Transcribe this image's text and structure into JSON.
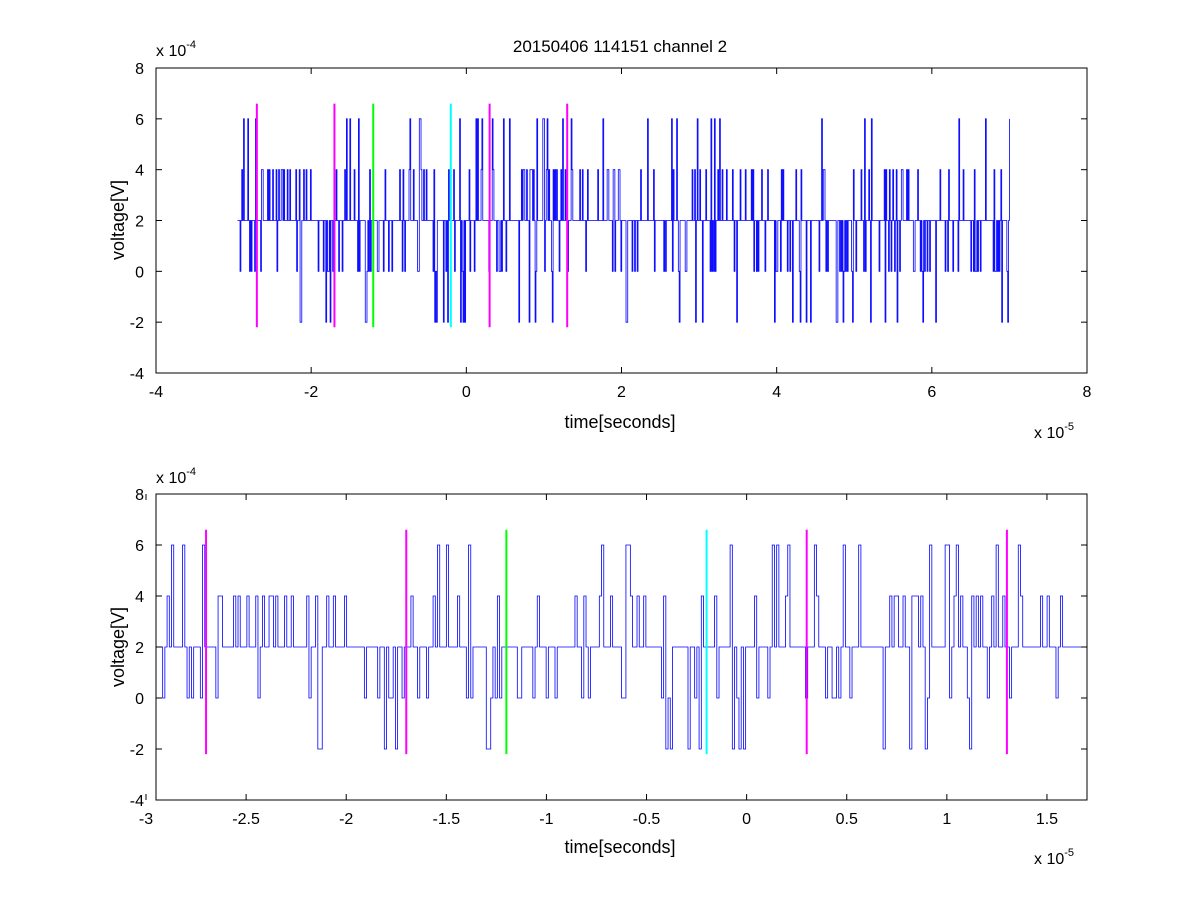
{
  "figure_title": "20150406 114151 channel 2",
  "chart_data": [
    {
      "type": "line",
      "xlabel": "time[seconds]",
      "ylabel": "voltage[V]",
      "x_exponent_label": "x 10",
      "x_exponent": "-5",
      "y_exponent_label": "x 10",
      "y_exponent": "-4",
      "xlim": [
        -4,
        8
      ],
      "ylim": [
        -4,
        8
      ],
      "xticks": [
        -4,
        -2,
        0,
        2,
        4,
        6,
        8
      ],
      "xtick_labels": [
        "-4",
        "-2",
        "0",
        "2",
        "4",
        "6",
        "8"
      ],
      "yticks": [
        -4,
        -2,
        0,
        2,
        4,
        6,
        8
      ],
      "ytick_labels": [
        "-4",
        "-2",
        "0",
        "2",
        "4",
        "6",
        "8"
      ],
      "grid": false,
      "series": [
        {
          "color": "#0000ff",
          "x_range": [
            -2.95,
            7.0
          ],
          "y_levels": [
            -2,
            0,
            2,
            4,
            6
          ],
          "baseline": 2,
          "note_values": "dense noisy step signal quantized to 2e-4 V, mostly between 0 and 4"
        }
      ],
      "markers": [
        {
          "x": -2.7,
          "y_range": [
            -2.2,
            6.6
          ],
          "color": "#ff00ff"
        },
        {
          "x": -1.7,
          "y_range": [
            -2.2,
            6.6
          ],
          "color": "#ff00ff"
        },
        {
          "x": -1.2,
          "y_range": [
            -2.2,
            6.6
          ],
          "color": "#00ff00"
        },
        {
          "x": -0.2,
          "y_range": [
            -2.2,
            6.6
          ],
          "color": "#00ffff"
        },
        {
          "x": 0.3,
          "y_range": [
            -2.2,
            6.6
          ],
          "color": "#ff00ff"
        },
        {
          "x": 1.3,
          "y_range": [
            -2.2,
            6.6
          ],
          "color": "#ff00ff"
        }
      ]
    },
    {
      "type": "line",
      "xlabel": "time[seconds]",
      "ylabel": "voltage[V]",
      "x_exponent_label": "x 10",
      "x_exponent": "-5",
      "y_exponent_label": "x 10",
      "y_exponent": "-4",
      "xlim": [
        -2.95,
        1.7
      ],
      "ylim": [
        -4,
        8
      ],
      "xticks": [
        -3,
        -2.5,
        -2,
        -1.5,
        -1,
        -0.5,
        0,
        0.5,
        1,
        1.5
      ],
      "xtick_labels": [
        "-3",
        "-2.5",
        "-2",
        "-1.5",
        "-1",
        "-0.5",
        "0",
        "0.5",
        "1",
        "1.5"
      ],
      "yticks": [
        -4,
        -2,
        0,
        2,
        4,
        6,
        8
      ],
      "ytick_labels": [
        "-4",
        "-2",
        "0",
        "2",
        "4",
        "6",
        "8"
      ],
      "grid": false,
      "series": [
        {
          "color": "#0000ff",
          "x_range": [
            -2.95,
            1.7
          ],
          "y_levels": [
            -2,
            0,
            2,
            4,
            6
          ],
          "baseline": 2,
          "note_values": "zoomed view of the same signal from -2.95e-5 to 1.7e-5 s"
        }
      ],
      "markers": [
        {
          "x": -2.7,
          "y_range": [
            -2.2,
            6.6
          ],
          "color": "#ff00ff"
        },
        {
          "x": -1.7,
          "y_range": [
            -2.2,
            6.6
          ],
          "color": "#ff00ff"
        },
        {
          "x": -1.2,
          "y_range": [
            -2.2,
            6.6
          ],
          "color": "#00ff00"
        },
        {
          "x": -0.2,
          "y_range": [
            -2.2,
            6.6
          ],
          "color": "#00ffff"
        },
        {
          "x": 0.3,
          "y_range": [
            -2.2,
            6.6
          ],
          "color": "#ff00ff"
        },
        {
          "x": 1.3,
          "y_range": [
            -2.2,
            6.6
          ],
          "color": "#ff00ff"
        }
      ]
    }
  ]
}
